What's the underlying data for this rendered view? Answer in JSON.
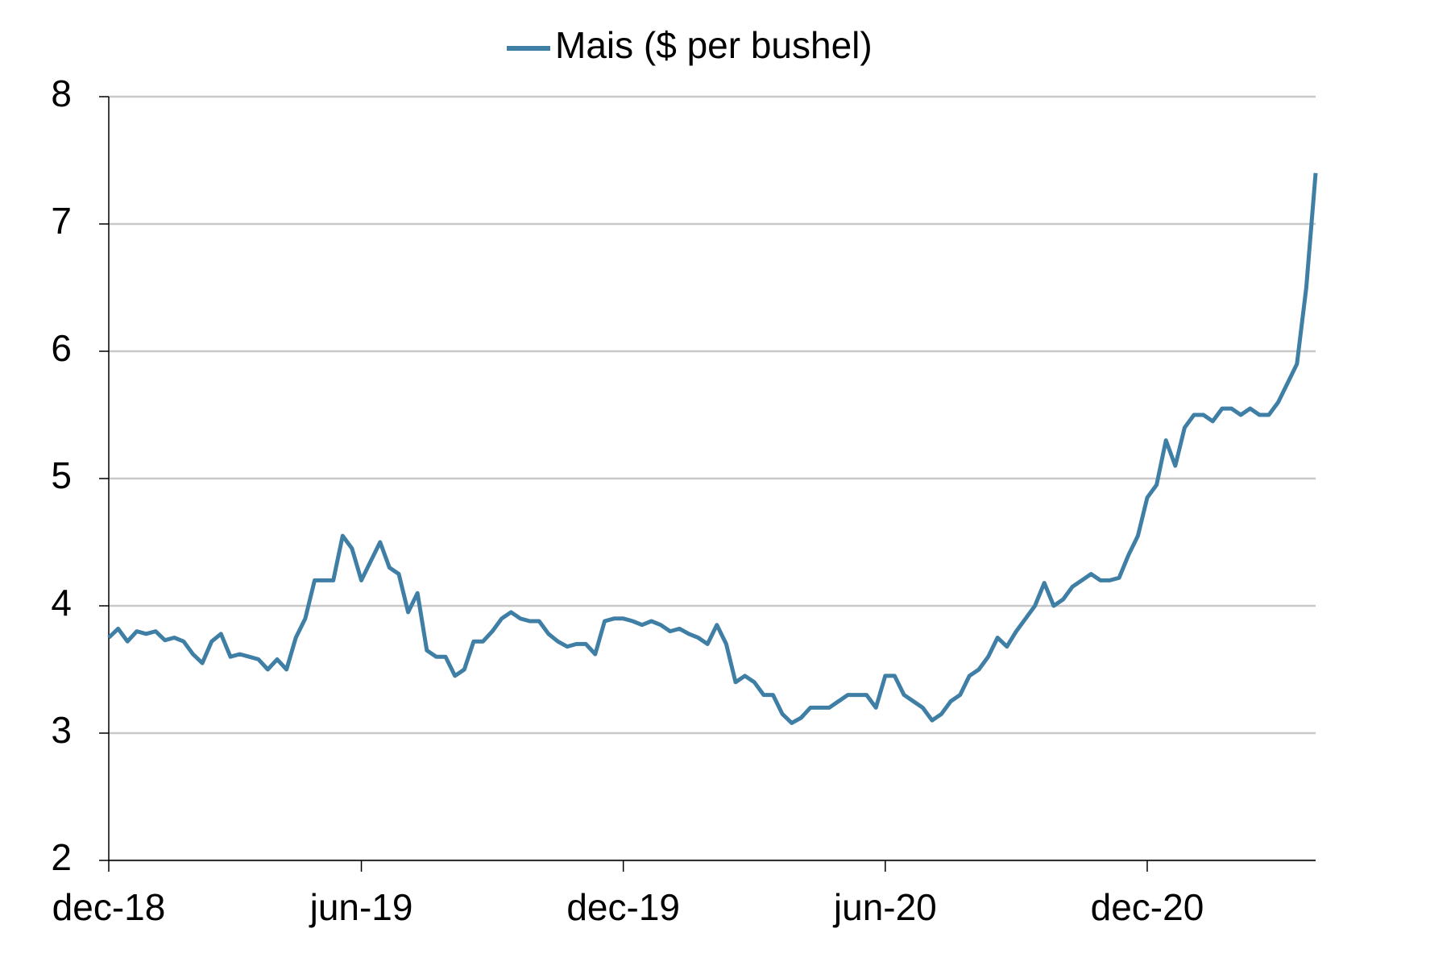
{
  "chart_data": {
    "type": "line",
    "categories": [
      "dec-18",
      null,
      null,
      null,
      null,
      null,
      null,
      null,
      null,
      null,
      null,
      null,
      null,
      null,
      null,
      null,
      null,
      null,
      null,
      null,
      null,
      null,
      null,
      null,
      null,
      null,
      null,
      "jun-19",
      null,
      null,
      null,
      null,
      null,
      null,
      null,
      null,
      null,
      null,
      null,
      null,
      null,
      null,
      null,
      null,
      null,
      null,
      null,
      null,
      null,
      null,
      null,
      null,
      null,
      null,
      null,
      "dec-19",
      null,
      null,
      null,
      null,
      null,
      null,
      null,
      null,
      null,
      null,
      null,
      null,
      null,
      null,
      null,
      null,
      null,
      null,
      null,
      null,
      null,
      null,
      null,
      null,
      null,
      null,
      null,
      "jun-20",
      null,
      null,
      null,
      null,
      null,
      null,
      null,
      null,
      null,
      null,
      null,
      null,
      null,
      null,
      null,
      null,
      null,
      null,
      null,
      null,
      null,
      null,
      null,
      null,
      null,
      null,
      null,
      "dec-20",
      null,
      null,
      null,
      null,
      null,
      null,
      null,
      null,
      null,
      null,
      null,
      null,
      null,
      null,
      null,
      null,
      null,
      null
    ],
    "series": [
      {
        "name": "Mais ($ per bushel)",
        "color": "#3f7ea5",
        "values": [
          3.75,
          3.82,
          3.72,
          3.8,
          3.78,
          3.8,
          3.73,
          3.75,
          3.72,
          3.62,
          3.55,
          3.72,
          3.78,
          3.6,
          3.62,
          3.6,
          3.58,
          3.5,
          3.58,
          3.5,
          3.75,
          3.9,
          4.2,
          4.2,
          4.2,
          4.55,
          4.45,
          4.2,
          4.35,
          4.5,
          4.3,
          4.25,
          3.95,
          4.1,
          3.65,
          3.6,
          3.6,
          3.45,
          3.5,
          3.72,
          3.72,
          3.8,
          3.9,
          3.95,
          3.9,
          3.88,
          3.88,
          3.78,
          3.72,
          3.68,
          3.7,
          3.7,
          3.62,
          3.88,
          3.9,
          3.9,
          3.88,
          3.85,
          3.88,
          3.85,
          3.8,
          3.82,
          3.78,
          3.75,
          3.7,
          3.85,
          3.7,
          3.4,
          3.45,
          3.4,
          3.3,
          3.3,
          3.15,
          3.08,
          3.12,
          3.2,
          3.2,
          3.2,
          3.25,
          3.3,
          3.3,
          3.3,
          3.2,
          3.45,
          3.45,
          3.3,
          3.25,
          3.2,
          3.1,
          3.15,
          3.25,
          3.3,
          3.45,
          3.5,
          3.6,
          3.75,
          3.68,
          3.8,
          3.9,
          4.0,
          4.18,
          4.0,
          4.05,
          4.15,
          4.2,
          4.25,
          4.2,
          4.2,
          4.22,
          4.4,
          4.55,
          4.85,
          4.95,
          5.3,
          5.1,
          5.4,
          5.5,
          5.5,
          5.45,
          5.55,
          5.55,
          5.5,
          5.55,
          5.5,
          5.5,
          5.6,
          5.75,
          5.9,
          6.5,
          7.4
        ]
      }
    ],
    "ylim": [
      2,
      8
    ],
    "yticks": [
      2,
      3,
      4,
      5,
      6,
      7,
      8
    ],
    "grid": true,
    "legend": "top"
  }
}
